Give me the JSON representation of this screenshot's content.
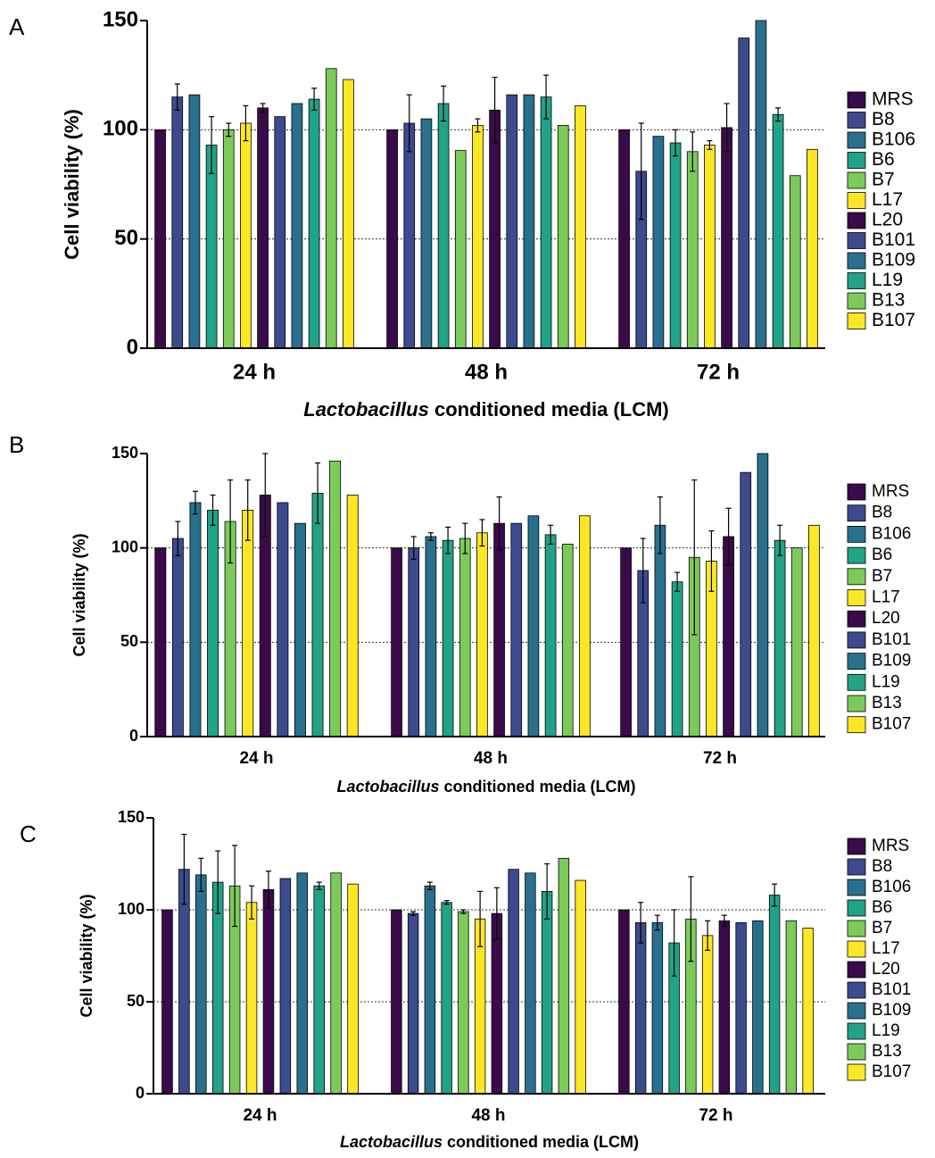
{
  "chart_data": [
    {
      "type": "bar",
      "panel_label": "A",
      "ylabel": "Cell viability (%)",
      "xlabel_italic": "Lactobacillus",
      "xlabel": "conditioned media (LCM)",
      "categories": [
        "24 h",
        "48 h",
        "72 h"
      ],
      "ylim": [
        0,
        150
      ],
      "yticks": [
        0,
        50,
        100,
        150
      ],
      "grid": true,
      "legend": "right",
      "series": [
        {
          "name": "MRS",
          "color": "#3b0a4a",
          "values": [
            100,
            100,
            100
          ],
          "errors": [
            null,
            null,
            null
          ]
        },
        {
          "name": "B8",
          "color": "#3d4a8e",
          "values": [
            115,
            103,
            81
          ],
          "errors": [
            6,
            13,
            22
          ]
        },
        {
          "name": "B106",
          "color": "#29708e",
          "values": [
            116,
            105,
            97
          ],
          "errors": [
            null,
            null,
            null
          ]
        },
        {
          "name": "B6",
          "color": "#22a287",
          "values": [
            93,
            112,
            94
          ],
          "errors": [
            13,
            8,
            6
          ]
        },
        {
          "name": "B7",
          "color": "#7ccb5a",
          "values": [
            100,
            90.5,
            90
          ],
          "errors": [
            3,
            null,
            9
          ]
        },
        {
          "name": "L17",
          "color": "#fde725",
          "values": [
            103,
            102,
            93
          ],
          "errors": [
            8,
            3,
            2
          ]
        },
        {
          "name": "L20",
          "color": "#3b0a4a",
          "values": [
            110,
            109,
            101
          ],
          "errors": [
            2,
            15,
            11
          ]
        },
        {
          "name": "B101",
          "color": "#3d4a8e",
          "values": [
            106,
            116,
            142
          ],
          "errors": [
            null,
            null,
            null
          ]
        },
        {
          "name": "B109",
          "color": "#29708e",
          "values": [
            112,
            116,
            150
          ],
          "errors": [
            null,
            null,
            null
          ]
        },
        {
          "name": "L19",
          "color": "#22a287",
          "values": [
            114,
            115,
            107
          ],
          "errors": [
            5,
            10,
            3
          ]
        },
        {
          "name": "B13",
          "color": "#7ccb5a",
          "values": [
            128,
            102,
            79
          ],
          "errors": [
            null,
            null,
            null
          ]
        },
        {
          "name": "B107",
          "color": "#fde725",
          "values": [
            123,
            111,
            91
          ],
          "errors": [
            null,
            null,
            null
          ]
        }
      ]
    },
    {
      "type": "bar",
      "panel_label": "B",
      "ylabel": "Cell viability (%)",
      "xlabel_italic": "Lactobacillus",
      "xlabel": "conditioned media (LCM)",
      "categories": [
        "24 h",
        "48 h",
        "72 h"
      ],
      "ylim": [
        0,
        150
      ],
      "yticks": [
        0,
        50,
        100,
        150
      ],
      "grid": true,
      "legend": "right",
      "series": [
        {
          "name": "MRS",
          "color": "#3b0a4a",
          "values": [
            100,
            100,
            100
          ],
          "errors": [
            null,
            null,
            null
          ]
        },
        {
          "name": "B8",
          "color": "#3d4a8e",
          "values": [
            105,
            100,
            88
          ],
          "errors": [
            9,
            6,
            17
          ]
        },
        {
          "name": "B106",
          "color": "#29708e",
          "values": [
            124,
            106,
            112
          ],
          "errors": [
            6,
            2,
            15
          ]
        },
        {
          "name": "B6",
          "color": "#22a287",
          "values": [
            120,
            104,
            82
          ],
          "errors": [
            8,
            7,
            5
          ]
        },
        {
          "name": "B7",
          "color": "#7ccb5a",
          "values": [
            114,
            105,
            95
          ],
          "errors": [
            22,
            8,
            41
          ]
        },
        {
          "name": "L17",
          "color": "#fde725",
          "values": [
            120,
            108,
            93
          ],
          "errors": [
            16,
            7,
            16
          ]
        },
        {
          "name": "L20",
          "color": "#3b0a4a",
          "values": [
            128,
            113,
            106
          ],
          "errors": [
            22,
            14,
            15
          ]
        },
        {
          "name": "B101",
          "color": "#3d4a8e",
          "values": [
            124,
            113,
            140
          ],
          "errors": [
            null,
            null,
            null
          ]
        },
        {
          "name": "B109",
          "color": "#29708e",
          "values": [
            113,
            117,
            150
          ],
          "errors": [
            null,
            null,
            null
          ]
        },
        {
          "name": "L19",
          "color": "#22a287",
          "values": [
            129,
            107,
            104
          ],
          "errors": [
            16,
            5,
            8
          ]
        },
        {
          "name": "B13",
          "color": "#7ccb5a",
          "values": [
            146,
            102,
            100
          ],
          "errors": [
            null,
            null,
            null
          ]
        },
        {
          "name": "B107",
          "color": "#fde725",
          "values": [
            128,
            117,
            112
          ],
          "errors": [
            null,
            null,
            null
          ]
        }
      ]
    },
    {
      "type": "bar",
      "panel_label": "C",
      "ylabel": "Cell viability (%)",
      "xlabel_italic": "Lactobacillus",
      "xlabel": "conditioned media (LCM)",
      "categories": [
        "24 h",
        "48 h",
        "72 h"
      ],
      "ylim": [
        0,
        150
      ],
      "yticks": [
        0,
        50,
        100,
        150
      ],
      "grid": true,
      "legend": "right",
      "series": [
        {
          "name": "MRS",
          "color": "#3b0a4a",
          "values": [
            100,
            100,
            100
          ],
          "errors": [
            null,
            null,
            null
          ]
        },
        {
          "name": "B8",
          "color": "#3d4a8e",
          "values": [
            122,
            98,
            93
          ],
          "errors": [
            19,
            1,
            11
          ]
        },
        {
          "name": "B106",
          "color": "#29708e",
          "values": [
            119,
            113,
            93
          ],
          "errors": [
            9,
            2,
            4
          ]
        },
        {
          "name": "B6",
          "color": "#22a287",
          "values": [
            115,
            104,
            82
          ],
          "errors": [
            17,
            1,
            18
          ]
        },
        {
          "name": "B7",
          "color": "#7ccb5a",
          "values": [
            113,
            99,
            95
          ],
          "errors": [
            22,
            1,
            23
          ]
        },
        {
          "name": "L17",
          "color": "#fde725",
          "values": [
            104,
            95,
            86
          ],
          "errors": [
            9,
            15,
            8
          ]
        },
        {
          "name": "L20",
          "color": "#3b0a4a",
          "values": [
            111,
            98,
            94
          ],
          "errors": [
            10,
            14,
            3
          ]
        },
        {
          "name": "B101",
          "color": "#3d4a8e",
          "values": [
            117,
            122,
            93
          ],
          "errors": [
            null,
            null,
            null
          ]
        },
        {
          "name": "B109",
          "color": "#29708e",
          "values": [
            120,
            120,
            94
          ],
          "errors": [
            null,
            null,
            null
          ]
        },
        {
          "name": "L19",
          "color": "#22a287",
          "values": [
            113,
            110,
            108
          ],
          "errors": [
            2,
            15,
            6
          ]
        },
        {
          "name": "B13",
          "color": "#7ccb5a",
          "values": [
            120,
            128,
            94
          ],
          "errors": [
            null,
            null,
            null
          ]
        },
        {
          "name": "B107",
          "color": "#fde725",
          "values": [
            114,
            116,
            90
          ],
          "errors": [
            null,
            null,
            null
          ]
        }
      ]
    }
  ]
}
